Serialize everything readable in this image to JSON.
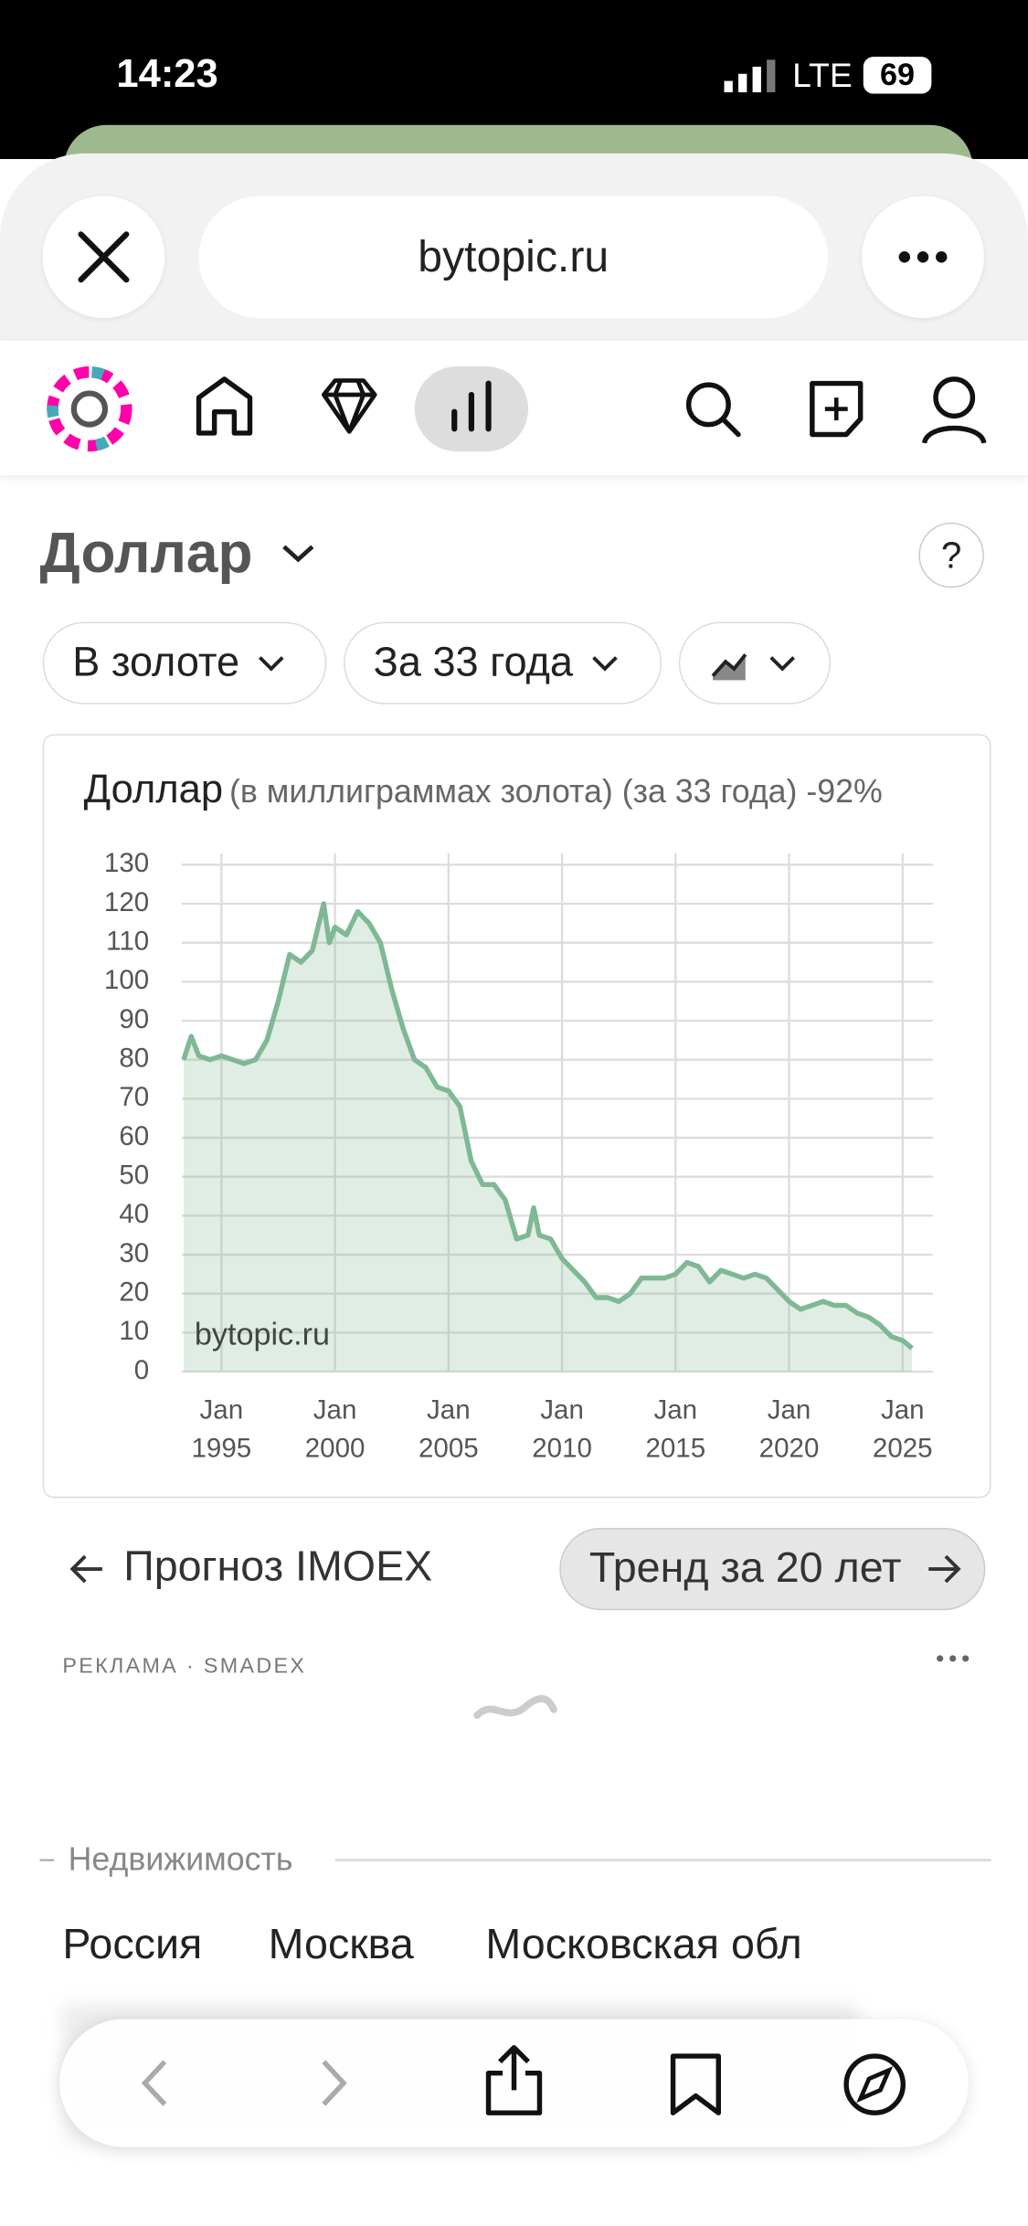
{
  "status_bar": {
    "time": "14:23",
    "network": "LTE",
    "battery": "69"
  },
  "browser": {
    "url": "bytopic.ru"
  },
  "page": {
    "heading": "Доллар",
    "help": "?",
    "filters": [
      "В золоте",
      "За 33 года"
    ]
  },
  "chart_data": {
    "type": "area",
    "title": "Доллар",
    "subtitle": "(в миллиграммах золота) (за 33 года) -92%",
    "annotation": "bytopic.ru",
    "color": "#7fb894",
    "x": [
      "1993-05",
      "1993-09",
      "1994-01",
      "1994-07",
      "1995-01",
      "1995-07",
      "1996-01",
      "1996-07",
      "1997-01",
      "1997-07",
      "1998-01",
      "1998-07",
      "1999-01",
      "1999-07",
      "1999-10",
      "2000-01",
      "2000-07",
      "2001-01",
      "2001-07",
      "2002-01",
      "2002-07",
      "2003-01",
      "2003-07",
      "2004-01",
      "2004-07",
      "2005-01",
      "2005-07",
      "2006-01",
      "2006-07",
      "2007-01",
      "2007-07",
      "2008-01",
      "2008-07",
      "2008-10",
      "2009-01",
      "2009-07",
      "2010-01",
      "2010-07",
      "2011-01",
      "2011-07",
      "2012-01",
      "2012-07",
      "2013-01",
      "2013-07",
      "2014-01",
      "2014-07",
      "2015-01",
      "2015-07",
      "2016-01",
      "2016-07",
      "2017-01",
      "2017-07",
      "2018-01",
      "2018-07",
      "2019-01",
      "2019-07",
      "2020-01",
      "2020-07",
      "2021-01",
      "2021-07",
      "2022-01",
      "2022-07",
      "2023-01",
      "2023-07",
      "2024-01",
      "2024-07",
      "2025-01",
      "2025-06"
    ],
    "values": [
      80,
      86,
      81,
      80,
      81,
      80,
      79,
      80,
      85,
      95,
      107,
      105,
      108,
      120,
      110,
      114,
      112,
      118,
      115,
      110,
      98,
      88,
      80,
      78,
      73,
      72,
      68,
      54,
      48,
      48,
      44,
      34,
      35,
      42,
      35,
      34,
      29,
      26,
      23,
      19,
      19,
      18,
      20,
      24,
      24,
      24,
      25,
      28,
      27,
      23,
      26,
      25,
      24,
      25,
      24,
      21,
      18,
      16,
      17,
      18,
      17,
      17,
      15,
      14,
      12,
      9,
      8,
      6
    ],
    "xlim": [
      "1993-04",
      "2026-05"
    ],
    "xticks": [
      {
        "value": "1995-01",
        "label": "Jan 1995"
      },
      {
        "value": "2000-01",
        "label": "Jan 2000"
      },
      {
        "value": "2005-01",
        "label": "Jan 2005"
      },
      {
        "value": "2010-01",
        "label": "Jan 2010"
      },
      {
        "value": "2015-01",
        "label": "Jan 2015"
      },
      {
        "value": "2020-01",
        "label": "Jan 2020"
      },
      {
        "value": "2025-01",
        "label": "Jan 2025"
      }
    ],
    "ylim": [
      0,
      130
    ],
    "yticks": [
      0,
      10,
      20,
      30,
      40,
      50,
      60,
      70,
      80,
      90,
      100,
      110,
      120,
      130
    ],
    "grid": true
  },
  "navigation": {
    "prev": "Прогноз IMOEX",
    "next": "Тренд за 20 лет"
  },
  "ad": {
    "label": "РЕКЛАМА · SMADEX"
  },
  "section": {
    "title": "Недвижимость",
    "links": [
      "Россия",
      "Москва",
      "Московская обл"
    ]
  }
}
